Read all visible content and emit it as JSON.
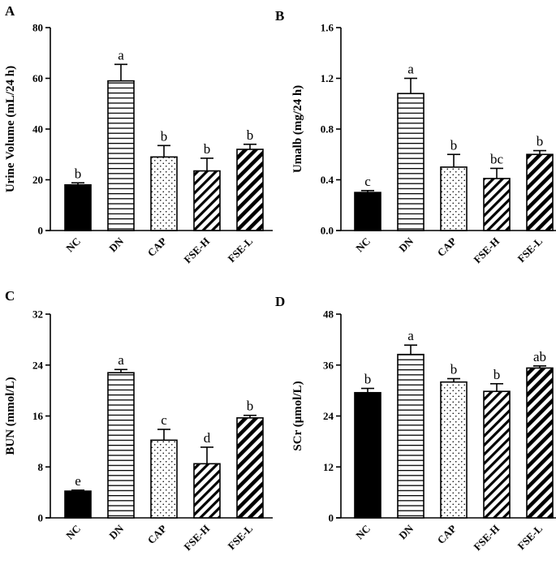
{
  "chart_data": [
    {
      "type": "bar",
      "panel": "A",
      "ylabel": "Urine Volume (mL/24 h)",
      "ylim": [
        0,
        80
      ],
      "yticks": [
        0,
        20,
        40,
        60,
        80
      ],
      "tick_labels": [
        "0",
        "20",
        "40",
        "60",
        "80"
      ],
      "categories": [
        "NC",
        "DN",
        "CAP",
        "FSE-H",
        "FSE-L"
      ],
      "values": [
        18,
        59,
        29,
        23.5,
        32
      ],
      "errors": [
        0.8,
        6.5,
        4.5,
        5,
        2
      ],
      "letters": [
        "b",
        "a",
        "b",
        "b",
        "b"
      ]
    },
    {
      "type": "bar",
      "panel": "B",
      "ylabel": "Umalb (mg/24 h)",
      "ylim": [
        0,
        1.6
      ],
      "yticks": [
        0,
        0.4,
        0.8,
        1.2,
        1.6
      ],
      "tick_labels": [
        "0.0",
        "0.4",
        "0.8",
        "1.2",
        "1.6"
      ],
      "categories": [
        "NC",
        "DN",
        "CAP",
        "FSE-H",
        "FSE-L"
      ],
      "values": [
        0.3,
        1.08,
        0.5,
        0.41,
        0.6
      ],
      "errors": [
        0.015,
        0.12,
        0.1,
        0.08,
        0.03
      ],
      "letters": [
        "c",
        "a",
        "b",
        "bc",
        "b"
      ]
    },
    {
      "type": "bar",
      "panel": "C",
      "ylabel": "BUN (mmol/L)",
      "ylim": [
        0,
        32
      ],
      "yticks": [
        0,
        8,
        16,
        24,
        32
      ],
      "tick_labels": [
        "0",
        "8",
        "16",
        "24",
        "32"
      ],
      "categories": [
        "NC",
        "DN",
        "CAP",
        "FSE-H",
        "FSE-L"
      ],
      "values": [
        4.2,
        22.8,
        12.2,
        8.5,
        15.7
      ],
      "errors": [
        0.15,
        0.5,
        1.7,
        2.6,
        0.4
      ],
      "letters": [
        "e",
        "a",
        "c",
        "d",
        "b"
      ]
    },
    {
      "type": "bar",
      "panel": "D",
      "ylabel": "SCr (μmol/L)",
      "ylim": [
        0,
        48
      ],
      "yticks": [
        0,
        12,
        24,
        36,
        48
      ],
      "tick_labels": [
        "0",
        "12",
        "24",
        "36",
        "48"
      ],
      "categories": [
        "NC",
        "DN",
        "CAP",
        "FSE-H",
        "FSE-L"
      ],
      "values": [
        29.5,
        38.5,
        32,
        29.8,
        35.3
      ],
      "errors": [
        1,
        2.2,
        0.8,
        1.8,
        0.5
      ],
      "letters": [
        "b",
        "a",
        "b",
        "b",
        "ab"
      ]
    }
  ],
  "patterns": [
    "solid",
    "horizontal-lines",
    "dots",
    "diagonal-lines",
    "thick-diagonal-lines"
  ],
  "colors": {
    "ink": "#000000",
    "background": "#ffffff"
  }
}
